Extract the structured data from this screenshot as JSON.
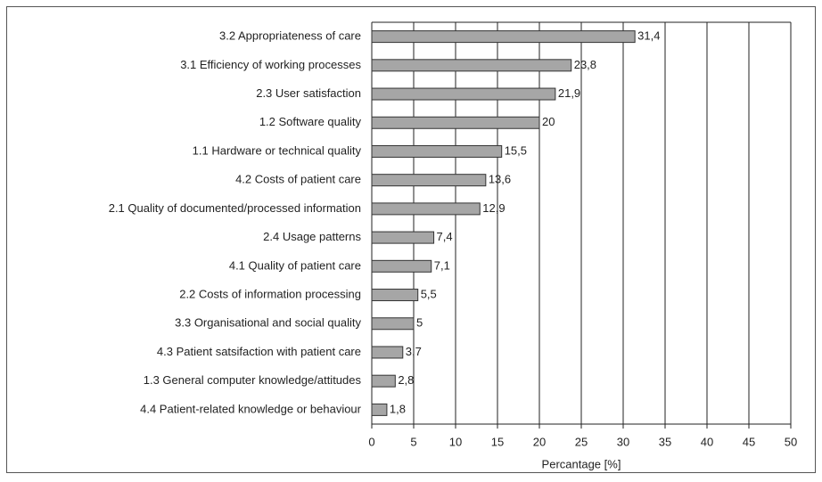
{
  "chart_data": {
    "type": "bar",
    "orientation": "horizontal",
    "categories": [
      "3.2 Appropriateness of care",
      "3.1 Efficiency of working processes",
      "2.3 User satisfaction",
      "1.2 Software quality",
      "1.1 Hardware or technical quality",
      "4.2 Costs of patient care",
      "2.1 Quality of documented/processed information",
      "2.4 Usage patterns",
      "4.1 Quality of patient care",
      "2.2 Costs of information processing",
      "3.3 Organisational and social quality",
      "4.3 Patient satsifaction with patient care",
      "1.3 General computer knowledge/attitudes",
      "4.4 Patient-related knowledge or behaviour"
    ],
    "values": [
      31.4,
      23.8,
      21.9,
      20,
      15.5,
      13.6,
      12.9,
      7.4,
      7.1,
      5.5,
      5,
      3.7,
      2.8,
      1.8
    ],
    "value_labels": [
      "31,4",
      "23,8",
      "21,9",
      "20",
      "15,5",
      "13,6",
      "12,9",
      "7,4",
      "7,1",
      "5,5",
      "5",
      "3,7",
      "2,8",
      "1,8"
    ],
    "color": "#a6a6a6",
    "xlabel": "Percantage [%]",
    "xlim": [
      0,
      50
    ],
    "xticks": [
      0,
      5,
      10,
      15,
      20,
      25,
      30,
      35,
      40,
      45,
      50
    ],
    "grid": true
  }
}
